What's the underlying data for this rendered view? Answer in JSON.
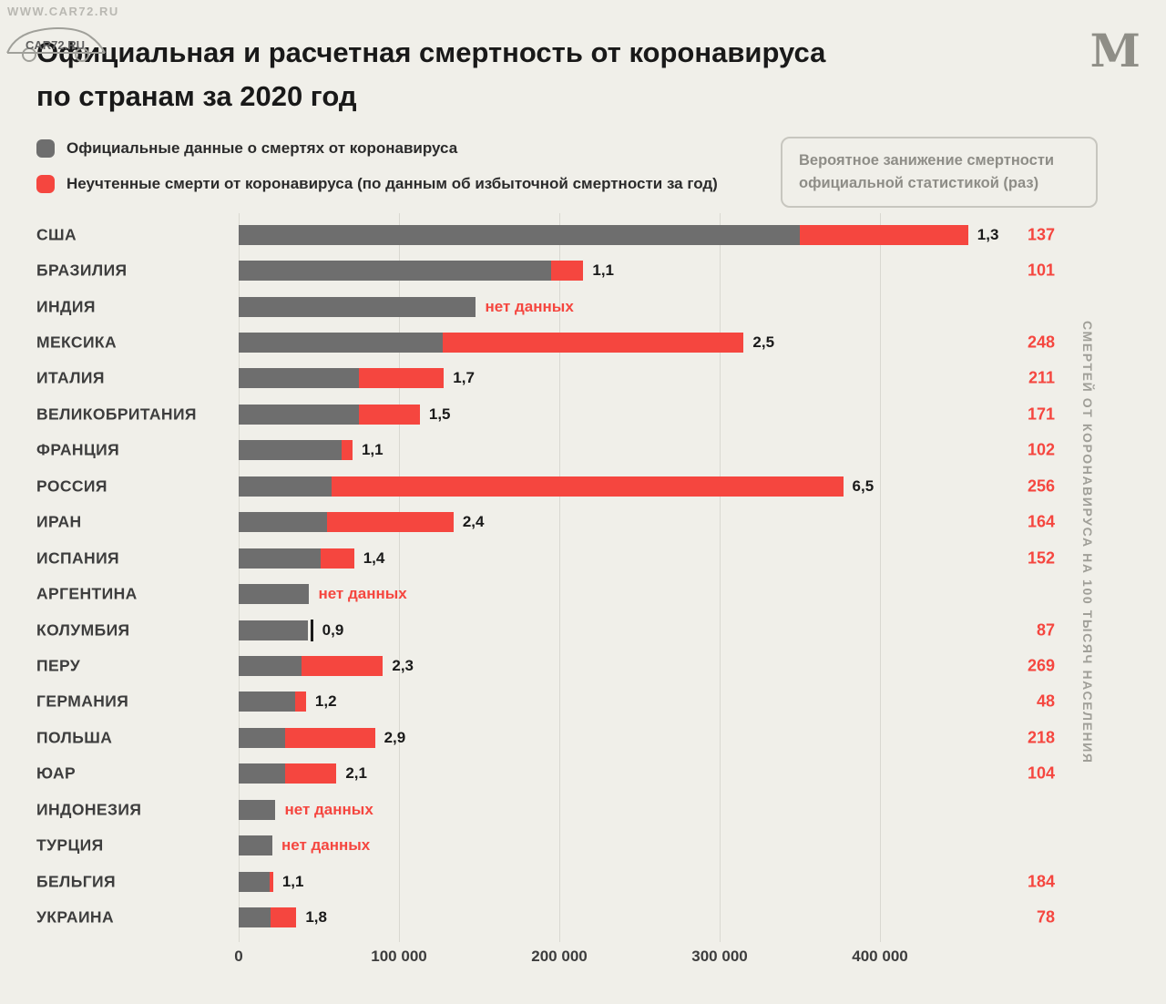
{
  "watermark": {
    "url_text": "WWW.CAR72.RU",
    "logo_text": "CAR72.RU"
  },
  "logo": {
    "name": "meduza",
    "letter": "M"
  },
  "title": {
    "line1": "Официальная и расчетная смертность от коронавируса",
    "line2": "по странам за 2020 год"
  },
  "legend": [
    {
      "color": "#6e6e6e",
      "label": "Официальные данные о смертях от коронавируса"
    },
    {
      "color": "#f5463f",
      "label": "Неучтенные смерти от коронавируса (по данным об избыточной смертности за год)"
    }
  ],
  "callout": {
    "line1": "Вероятное занижение смертности",
    "line2": "официальной статистикой (раз)"
  },
  "right_axis_label": "СМЕРТЕЙ ОТ КОРОНАВИРУСА НА 100 ТЫСЯЧ НАСЕЛЕНИЯ",
  "colors": {
    "background": "#f0efe9",
    "official_bar": "#6e6e6e",
    "excess_bar": "#f5463f",
    "accent_red_text": "#f5463f",
    "gridline": "#d9d8d1"
  },
  "chart_data": {
    "type": "bar",
    "orientation": "horizontal",
    "title": "Официальная и расчетная смертность от коронавируса по странам за 2020 год",
    "xlabel": "",
    "ylabel_right": "СМЕРТЕЙ ОТ КОРОНАВИРУСА НА 100 ТЫСЯЧ НАСЕЛЕНИЯ",
    "xlim": [
      0,
      480000
    ],
    "grid": true,
    "x_axis": {
      "tick_labels": [
        "0",
        "100 000",
        "200 000",
        "300 000",
        "400 000"
      ],
      "tick_values": [
        0,
        100000,
        200000,
        300000,
        400000
      ]
    },
    "series_legend": [
      "Официальные данные о смертях от коронавируса",
      "Неучтенные смерти от коронавируса (по данным об избыточной смертности за год)"
    ],
    "no_data_text": "нет данных",
    "rows": [
      {
        "country": "США",
        "official": 350000,
        "total": 455000,
        "multiplier": "1,3",
        "per100k": "137",
        "no_data": false,
        "marker": false
      },
      {
        "country": "БРАЗИЛИЯ",
        "official": 195000,
        "total": 215000,
        "multiplier": "1,1",
        "per100k": "101",
        "no_data": false,
        "marker": false
      },
      {
        "country": "ИНДИЯ",
        "official": 148000,
        "total": null,
        "multiplier": "нет данных",
        "per100k": "",
        "no_data": true,
        "marker": false
      },
      {
        "country": "МЕКСИКА",
        "official": 127000,
        "total": 315000,
        "multiplier": "2,5",
        "per100k": "248",
        "no_data": false,
        "marker": false
      },
      {
        "country": "ИТАЛИЯ",
        "official": 75000,
        "total": 128000,
        "multiplier": "1,7",
        "per100k": "211",
        "no_data": false,
        "marker": false
      },
      {
        "country": "ВЕЛИКОБРИТАНИЯ",
        "official": 75000,
        "total": 113000,
        "multiplier": "1,5",
        "per100k": "171",
        "no_data": false,
        "marker": false
      },
      {
        "country": "ФРАНЦИЯ",
        "official": 64000,
        "total": 71000,
        "multiplier": "1,1",
        "per100k": "102",
        "no_data": false,
        "marker": false
      },
      {
        "country": "РОССИЯ",
        "official": 58000,
        "total": 377000,
        "multiplier": "6,5",
        "per100k": "256",
        "no_data": false,
        "marker": false
      },
      {
        "country": "ИРАН",
        "official": 55000,
        "total": 134000,
        "multiplier": "2,4",
        "per100k": "164",
        "no_data": false,
        "marker": false
      },
      {
        "country": "ИСПАНИЯ",
        "official": 51000,
        "total": 72000,
        "multiplier": "1,4",
        "per100k": "152",
        "no_data": false,
        "marker": false
      },
      {
        "country": "АРГЕНТИНА",
        "official": 44000,
        "total": null,
        "multiplier": "нет данных",
        "per100k": "",
        "no_data": true,
        "marker": false
      },
      {
        "country": "КОЛУМБИЯ",
        "official": 43000,
        "total": null,
        "multiplier": "0,9",
        "per100k": "87",
        "no_data": false,
        "marker": true
      },
      {
        "country": "ПЕРУ",
        "official": 39000,
        "total": 90000,
        "multiplier": "2,3",
        "per100k": "269",
        "no_data": false,
        "marker": false
      },
      {
        "country": "ГЕРМАНИЯ",
        "official": 35000,
        "total": 42000,
        "multiplier": "1,2",
        "per100k": "48",
        "no_data": false,
        "marker": false
      },
      {
        "country": "ПОЛЬША",
        "official": 29000,
        "total": 85000,
        "multiplier": "2,9",
        "per100k": "218",
        "no_data": false,
        "marker": false
      },
      {
        "country": "ЮАР",
        "official": 29000,
        "total": 61000,
        "multiplier": "2,1",
        "per100k": "104",
        "no_data": false,
        "marker": false
      },
      {
        "country": "ИНДОНЕЗИЯ",
        "official": 23000,
        "total": null,
        "multiplier": "нет данных",
        "per100k": "",
        "no_data": true,
        "marker": false
      },
      {
        "country": "ТУРЦИЯ",
        "official": 21000,
        "total": null,
        "multiplier": "нет данных",
        "per100k": "",
        "no_data": true,
        "marker": false
      },
      {
        "country": "БЕЛЬГИЯ",
        "official": 19500,
        "total": 21500,
        "multiplier": "1,1",
        "per100k": "184",
        "no_data": false,
        "marker": false
      },
      {
        "country": "УКРАИНА",
        "official": 20000,
        "total": 36000,
        "multiplier": "1,8",
        "per100k": "78",
        "no_data": false,
        "marker": false
      }
    ]
  }
}
